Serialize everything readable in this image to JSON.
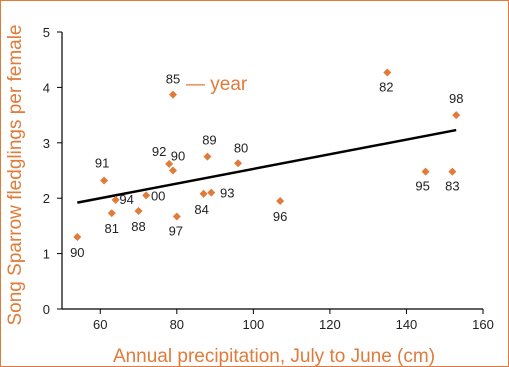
{
  "chart_data": {
    "type": "scatter",
    "xlabel": "Annual precipitation, July to June (cm)",
    "ylabel": "Song Sparrow fledglings per female",
    "xlim": [
      50,
      160
    ],
    "ylim": [
      0,
      5
    ],
    "xticks": [
      60,
      80,
      100,
      120,
      140,
      160
    ],
    "yticks": [
      0,
      1,
      2,
      3,
      4,
      5
    ],
    "grid": false,
    "points": [
      {
        "x": 54,
        "y": 1.3,
        "label": "90"
      },
      {
        "x": 61,
        "y": 2.32,
        "label": "91"
      },
      {
        "x": 63,
        "y": 1.73,
        "label": "81"
      },
      {
        "x": 64,
        "y": 1.97,
        "label": "94"
      },
      {
        "x": 70,
        "y": 1.77,
        "label": "88"
      },
      {
        "x": 72,
        "y": 2.05,
        "label": "00"
      },
      {
        "x": 78,
        "y": 2.62,
        "label": "92"
      },
      {
        "x": 79,
        "y": 3.87,
        "label": "85"
      },
      {
        "x": 79,
        "y": 2.5,
        "label": "90"
      },
      {
        "x": 80,
        "y": 1.67,
        "label": "97"
      },
      {
        "x": 87,
        "y": 2.08,
        "label": "84"
      },
      {
        "x": 88,
        "y": 2.75,
        "label": "89"
      },
      {
        "x": 89,
        "y": 2.1,
        "label": "93"
      },
      {
        "x": 96,
        "y": 2.63,
        "label": "80"
      },
      {
        "x": 107,
        "y": 1.95,
        "label": "96"
      },
      {
        "x": 135,
        "y": 4.27,
        "label": "82"
      },
      {
        "x": 145,
        "y": 2.48,
        "label": "95"
      },
      {
        "x": 152,
        "y": 2.48,
        "label": "83"
      },
      {
        "x": 153,
        "y": 3.5,
        "label": "98"
      }
    ],
    "trend_line": [
      {
        "x": 54,
        "y": 1.92
      },
      {
        "x": 153,
        "y": 3.23
      }
    ],
    "annotation": {
      "text": "— year"
    },
    "colors": {
      "marker": "#e07b39",
      "label_text": "#e07b39",
      "frame_border": "#e07b39",
      "axis": "#000000",
      "trend": "#000000"
    }
  }
}
